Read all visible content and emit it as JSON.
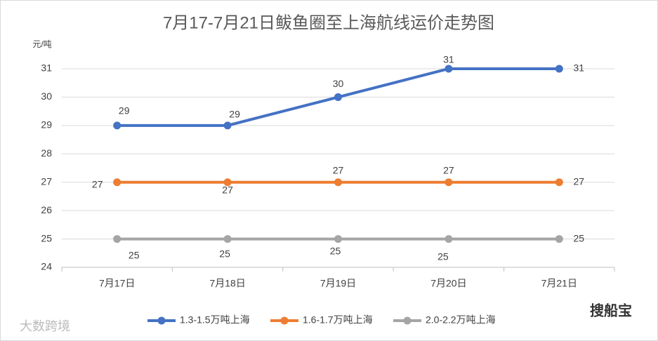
{
  "chart_data": {
    "type": "line",
    "title": "7月17-7月21日鲅鱼圈至上海航线运价走势图",
    "y_axis_label": "元/吨",
    "categories": [
      "7月17日",
      "7月18日",
      "7月19日",
      "7月20日",
      "7月21日"
    ],
    "series": [
      {
        "name": "1.3-1.5万吨上海",
        "color": "#4472c4",
        "values": [
          29,
          29,
          30,
          31,
          31
        ]
      },
      {
        "name": "1.6-1.7万吨上海",
        "color": "#ed7d31",
        "values": [
          27,
          27,
          27,
          27,
          27
        ]
      },
      {
        "name": "2.0-2.2万吨上海",
        "color": "#a5a5a5",
        "values": [
          25,
          25,
          25,
          25,
          25
        ]
      }
    ],
    "ylim": [
      24,
      31
    ],
    "yticks": [
      24,
      25,
      26,
      27,
      28,
      29,
      30,
      31
    ],
    "grid": true,
    "legend": "bottom"
  },
  "watermarks": [
    "大数跨境",
    "搜船宝"
  ]
}
